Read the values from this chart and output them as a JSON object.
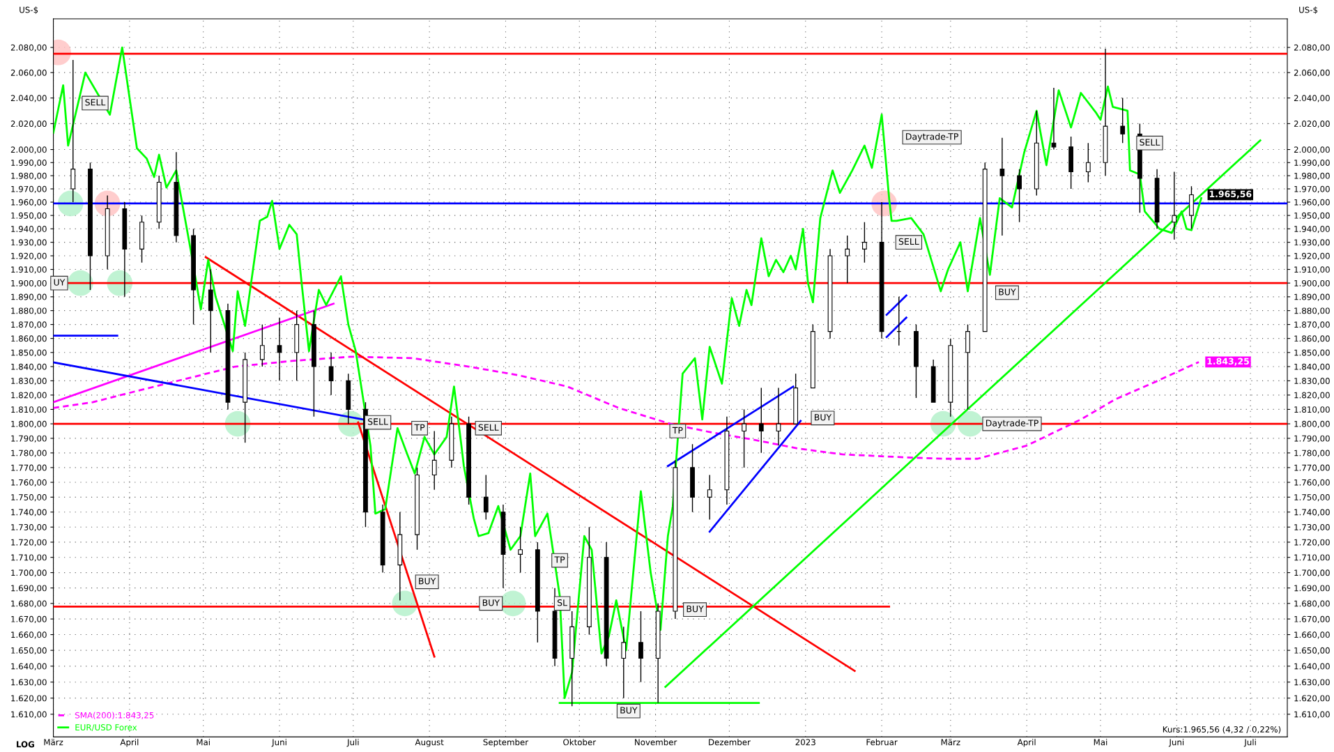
{
  "chart_data": {
    "type": "candlestick",
    "ylabel": "US-$",
    "y2label": "US-$",
    "log": true,
    "grid": true,
    "legend": "bottom left",
    "xlim": [
      "2022-03-01",
      "2023-07-16"
    ],
    "xticks": [
      {
        "value": "2022-03-01",
        "label": "März"
      },
      {
        "value": "2022-04-01",
        "label": "April"
      },
      {
        "value": "2022-05-01",
        "label": "Mai"
      },
      {
        "value": "2022-06-01",
        "label": "Juni"
      },
      {
        "value": "2022-07-01",
        "label": "Juli"
      },
      {
        "value": "2022-08-01",
        "label": "August"
      },
      {
        "value": "2022-09-01",
        "label": "September"
      },
      {
        "value": "2022-10-01",
        "label": "Oktober"
      },
      {
        "value": "2022-11-01",
        "label": "November"
      },
      {
        "value": "2022-12-01",
        "label": "Dezember"
      },
      {
        "value": "2023-01-01",
        "label": "2023"
      },
      {
        "value": "2023-02-01",
        "label": "Februar"
      },
      {
        "value": "2023-03-01",
        "label": "März"
      },
      {
        "value": "2023-04-01",
        "label": "April"
      },
      {
        "value": "2023-05-01",
        "label": "Mai"
      },
      {
        "value": "2023-06-01",
        "label": "Juni"
      },
      {
        "value": "2023-07-01",
        "label": "Juli"
      }
    ],
    "ylim": [
      1596,
      2103
    ],
    "yticks": [
      {
        "value": 1610,
        "label": "1.610,00"
      },
      {
        "value": 1620,
        "label": "1.620,00"
      },
      {
        "value": 1630,
        "label": "1.630,00"
      },
      {
        "value": 1640,
        "label": "1.640,00"
      },
      {
        "value": 1650,
        "label": "1.650,00"
      },
      {
        "value": 1660,
        "label": "1.660,00"
      },
      {
        "value": 1670,
        "label": "1.670,00"
      },
      {
        "value": 1680,
        "label": "1.680,00"
      },
      {
        "value": 1690,
        "label": "1.690,00"
      },
      {
        "value": 1700,
        "label": "1.700,00"
      },
      {
        "value": 1710,
        "label": "1.710,00"
      },
      {
        "value": 1720,
        "label": "1.720,00"
      },
      {
        "value": 1730,
        "label": "1.730,00"
      },
      {
        "value": 1740,
        "label": "1.740,00"
      },
      {
        "value": 1750,
        "label": "1.750,00"
      },
      {
        "value": 1760,
        "label": "1.760,00"
      },
      {
        "value": 1770,
        "label": "1.770,00"
      },
      {
        "value": 1780,
        "label": "1.780,00"
      },
      {
        "value": 1790,
        "label": "1.790,00"
      },
      {
        "value": 1800,
        "label": "1.800,00"
      },
      {
        "value": 1810,
        "label": "1.810,00"
      },
      {
        "value": 1820,
        "label": "1.820,00"
      },
      {
        "value": 1830,
        "label": "1.830,00"
      },
      {
        "value": 1840,
        "label": "1.840,00"
      },
      {
        "value": 1850,
        "label": "1.850,00"
      },
      {
        "value": 1860,
        "label": "1.860,00"
      },
      {
        "value": 1870,
        "label": "1.870,00"
      },
      {
        "value": 1880,
        "label": "1.880,00"
      },
      {
        "value": 1890,
        "label": "1.890,00"
      },
      {
        "value": 1900,
        "label": "1.900,00"
      },
      {
        "value": 1910,
        "label": "1.910,00"
      },
      {
        "value": 1920,
        "label": "1.920,00"
      },
      {
        "value": 1930,
        "label": "1.930,00"
      },
      {
        "value": 1940,
        "label": "1.940,00"
      },
      {
        "value": 1950,
        "label": "1.950,00"
      },
      {
        "value": 1960,
        "label": "1.960,00"
      },
      {
        "value": 1970,
        "label": "1.970,00"
      },
      {
        "value": 1980,
        "label": "1.980,00"
      },
      {
        "value": 1990,
        "label": "1.990,00"
      },
      {
        "value": 2000,
        "label": "2.000,00"
      },
      {
        "value": 2020,
        "label": "2.020,00"
      },
      {
        "value": 2040,
        "label": "2.040,00"
      },
      {
        "value": 2060,
        "label": "2.060,00"
      },
      {
        "value": 2080,
        "label": "2.080,00"
      }
    ],
    "ref_lines": [
      {
        "axis": "y",
        "value": 2075,
        "color": "#ff0000"
      },
      {
        "axis": "y",
        "value": 1900,
        "color": "#ff0000"
      },
      {
        "axis": "y",
        "value": 1800,
        "color": "#ff0000"
      },
      {
        "axis": "y",
        "value": 1959,
        "color": "#0000ff"
      }
    ],
    "series": [
      {
        "type": "scatter",
        "marker": "circle",
        "x": [
          "2022-03-03",
          "2022-03-23",
          "2023-02-02",
          "2022-03-08",
          "2022-03-12",
          "2022-03-28",
          "2022-05-15",
          "2022-06-30",
          "2022-07-22",
          "2022-09-04",
          "2023-02-26",
          "2023-03-09"
        ],
        "values": [
          2076,
          1959,
          1959,
          1959,
          1900,
          1900,
          1800,
          1800,
          1680,
          1680,
          1800,
          1800
        ],
        "colors": [
          "#ffc0c0",
          "#ffc0c0",
          "#ffc0c0",
          "#b0f0c8",
          "#b0f0c8",
          "#b0f0c8",
          "#b0f0c8",
          "#b0f0c8",
          "#b0f0c8",
          "#b0f0c8",
          "#b0f0c8",
          "#b0f0c8"
        ]
      },
      {
        "type": "line",
        "name": "SMA(200):1.843,25",
        "color": "#ff00ff",
        "line_style": "dashed",
        "x": [
          "2022-03-01",
          "2022-03-17",
          "2022-04-02",
          "2022-04-23",
          "2022-05-14",
          "2022-06-06",
          "2022-06-30",
          "2022-07-25",
          "2022-08-17",
          "2022-09-06",
          "2022-09-26",
          "2022-10-17",
          "2022-11-07",
          "2022-11-24",
          "2022-12-11",
          "2022-12-29",
          "2023-01-16",
          "2023-02-10",
          "2023-02-27",
          "2023-03-12",
          "2023-04-01",
          "2023-04-23",
          "2023-05-07",
          "2023-05-23",
          "2023-06-10"
        ],
        "values": [
          1811,
          1815,
          1822,
          1831,
          1840,
          1844,
          1847,
          1846,
          1840,
          1834,
          1826,
          1811,
          1800,
          1794,
          1789,
          1783,
          1779,
          1777,
          1776,
          1776,
          1785,
          1803,
          1817,
          1829,
          1843.25
        ],
        "value_labels": [
          null,
          null,
          null,
          null,
          null,
          null,
          null,
          null,
          null,
          null,
          null,
          null,
          null,
          null,
          null,
          null,
          null,
          null,
          null,
          null,
          null,
          null,
          null,
          null,
          "1.843,25"
        ]
      },
      {
        "type": "line",
        "color": "#ff0000",
        "x": [
          "2022-03-01",
          "2023-02-04"
        ],
        "values": [
          1678,
          1678
        ]
      },
      {
        "type": "line",
        "color": "#ff0000",
        "x": [
          "2022-05-02",
          "2023-01-21"
        ],
        "values": [
          1919,
          1637
        ]
      },
      {
        "type": "line",
        "color": "#ff0000",
        "x": [
          "2022-07-03",
          "2022-08-03"
        ],
        "values": [
          1801,
          1646
        ]
      },
      {
        "type": "line",
        "color": "#ff00ff",
        "x": [
          "2022-03-01",
          "2022-06-23"
        ],
        "values": [
          1815,
          1885
        ]
      },
      {
        "type": "line",
        "color": "#0000ff",
        "x": [
          "2022-03-01",
          "2022-07-05"
        ],
        "values": [
          1843,
          1803
        ]
      },
      {
        "type": "line",
        "color": "#0000ff",
        "x": [
          "2022-03-01",
          "2022-03-27"
        ],
        "values": [
          1862,
          1862
        ]
      },
      {
        "type": "line",
        "color": "#0000ff",
        "x": [
          "2022-11-06",
          "2022-12-27"
        ],
        "values": [
          1771,
          1826
        ]
      },
      {
        "type": "line",
        "color": "#0000ff",
        "x": [
          "2022-11-23",
          "2022-12-30"
        ],
        "values": [
          1727,
          1802
        ]
      },
      {
        "type": "line",
        "color": "#0000ff",
        "x": [
          "2023-02-03",
          "2023-02-11"
        ],
        "values": [
          1877,
          1891
        ]
      },
      {
        "type": "line",
        "color": "#0000ff",
        "x": [
          "2023-02-03",
          "2023-02-11"
        ],
        "values": [
          1861,
          1875
        ]
      },
      {
        "color": "#000000",
        "x": [
          "2022-03-09",
          "2022-03-16",
          "2022-03-23",
          "2022-03-30",
          "2022-04-06",
          "2022-04-13",
          "2022-04-20",
          "2022-04-27",
          "2022-05-04",
          "2022-05-11",
          "2022-05-18",
          "2022-05-25",
          "2022-06-01",
          "2022-06-08",
          "2022-06-15",
          "2022-06-22",
          "2022-06-29",
          "2022-07-06",
          "2022-07-13",
          "2022-07-20",
          "2022-07-27",
          "2022-08-03",
          "2022-08-10",
          "2022-08-17",
          "2022-08-24",
          "2022-08-31",
          "2022-09-07",
          "2022-09-14",
          "2022-09-21",
          "2022-09-28",
          "2022-10-05",
          "2022-10-12",
          "2022-10-19",
          "2022-10-26",
          "2022-11-02",
          "2022-11-09",
          "2022-11-16",
          "2022-11-23",
          "2022-11-30",
          "2022-12-07",
          "2022-12-14",
          "2022-12-21",
          "2022-12-28",
          "2023-01-04",
          "2023-01-11",
          "2023-01-18",
          "2023-01-25",
          "2023-02-01",
          "2023-02-08",
          "2023-02-15",
          "2023-02-22",
          "2023-03-01",
          "2023-03-08",
          "2023-03-15",
          "2023-03-22",
          "2023-03-29",
          "2023-04-05",
          "2023-04-12",
          "2023-04-19",
          "2023-04-26",
          "2023-05-03",
          "2023-05-10",
          "2023-05-17",
          "2023-05-24",
          "2023-05-31",
          "2023-06-07"
        ],
        "ohlc": [
          [
            1970,
            2070,
            1960,
            1985
          ],
          [
            1985,
            1990,
            1895,
            1920
          ],
          [
            1920,
            1965,
            1910,
            1955
          ],
          [
            1955,
            1960,
            1890,
            1925
          ],
          [
            1925,
            1950,
            1915,
            1945
          ],
          [
            1945,
            1980,
            1940,
            1975
          ],
          [
            1975,
            1998,
            1930,
            1935
          ],
          [
            1935,
            1940,
            1870,
            1895
          ],
          [
            1895,
            1910,
            1850,
            1880
          ],
          [
            1880,
            1885,
            1810,
            1815
          ],
          [
            1815,
            1850,
            1787,
            1845
          ],
          [
            1845,
            1870,
            1840,
            1855
          ],
          [
            1855,
            1875,
            1830,
            1850
          ],
          [
            1850,
            1880,
            1830,
            1870
          ],
          [
            1870,
            1880,
            1805,
            1840
          ],
          [
            1840,
            1850,
            1820,
            1830
          ],
          [
            1830,
            1835,
            1800,
            1810
          ],
          [
            1810,
            1815,
            1730,
            1740
          ],
          [
            1740,
            1745,
            1700,
            1705
          ],
          [
            1705,
            1740,
            1682,
            1725
          ],
          [
            1725,
            1770,
            1715,
            1765
          ],
          [
            1765,
            1795,
            1755,
            1775
          ],
          [
            1775,
            1805,
            1770,
            1800
          ],
          [
            1800,
            1805,
            1745,
            1750
          ],
          [
            1750,
            1765,
            1735,
            1740
          ],
          [
            1740,
            1745,
            1690,
            1712
          ],
          [
            1712,
            1730,
            1700,
            1715
          ],
          [
            1715,
            1720,
            1655,
            1675
          ],
          [
            1675,
            1690,
            1640,
            1645
          ],
          [
            1645,
            1675,
            1615,
            1665
          ],
          [
            1665,
            1730,
            1660,
            1710
          ],
          [
            1710,
            1720,
            1640,
            1645
          ],
          [
            1645,
            1665,
            1620,
            1655
          ],
          [
            1655,
            1675,
            1630,
            1645
          ],
          [
            1645,
            1680,
            1617,
            1675
          ],
          [
            1675,
            1775,
            1670,
            1770
          ],
          [
            1770,
            1786,
            1740,
            1750
          ],
          [
            1750,
            1765,
            1735,
            1755
          ],
          [
            1755,
            1805,
            1745,
            1795
          ],
          [
            1795,
            1810,
            1770,
            1800
          ],
          [
            1800,
            1825,
            1780,
            1795
          ],
          [
            1795,
            1825,
            1785,
            1800
          ],
          [
            1800,
            1835,
            1800,
            1825
          ],
          [
            1825,
            1870,
            1825,
            1865
          ],
          [
            1865,
            1925,
            1860,
            1920
          ],
          [
            1920,
            1935,
            1900,
            1925
          ],
          [
            1925,
            1945,
            1915,
            1930
          ],
          [
            1930,
            1960,
            1860,
            1865
          ],
          [
            1865,
            1890,
            1855,
            1865
          ],
          [
            1865,
            1870,
            1818,
            1840
          ],
          [
            1840,
            1845,
            1815,
            1815
          ],
          [
            1815,
            1860,
            1805,
            1855
          ],
          [
            1850,
            1870,
            1810,
            1865
          ],
          [
            1865,
            1990,
            1865,
            1985
          ],
          [
            1985,
            2009,
            1935,
            1980
          ],
          [
            1980,
            1985,
            1945,
            1970
          ],
          [
            1970,
            2030,
            1965,
            2005
          ],
          [
            2005,
            2048,
            2000,
            2002
          ],
          [
            2002,
            2010,
            1970,
            1983
          ],
          [
            1983,
            2005,
            1975,
            1990
          ],
          [
            1990,
            2079,
            1980,
            2018
          ],
          [
            2018,
            2040,
            2005,
            2012
          ],
          [
            2012,
            2020,
            1952,
            1978
          ],
          [
            1978,
            1985,
            1940,
            1945
          ],
          [
            1945,
            1983,
            1932,
            1950
          ],
          [
            1950,
            1972,
            1940,
            1965.56
          ]
        ],
        "value_labels": [
          null,
          null,
          null,
          null,
          null,
          null,
          null,
          null,
          null,
          null,
          null,
          null,
          null,
          null,
          null,
          null,
          null,
          null,
          null,
          null,
          null,
          null,
          null,
          null,
          null,
          null,
          null,
          null,
          null,
          null,
          null,
          null,
          null,
          null,
          null,
          null,
          null,
          null,
          null,
          null,
          null,
          null,
          null,
          null,
          null,
          null,
          null,
          null,
          null,
          null,
          null,
          null,
          null,
          null,
          null,
          null,
          null,
          null,
          null,
          null,
          null,
          null,
          null,
          null,
          null,
          "1.965,56"
        ]
      },
      {
        "type": "line",
        "name": "EUR/USD Forex",
        "color": "#00ff00",
        "x": [
          "2022-03-01",
          "2022-03-05",
          "2022-03-07",
          "2022-03-14",
          "2022-03-24",
          "2022-03-29",
          "2022-04-04",
          "2022-04-08",
          "2022-04-11",
          "2022-04-13",
          "2022-04-16",
          "2022-04-20",
          "2022-04-26",
          "2022-04-30",
          "2022-05-03",
          "2022-05-06",
          "2022-05-13",
          "2022-05-15",
          "2022-05-18",
          "2022-05-24",
          "2022-05-27",
          "2022-05-29",
          "2022-06-01",
          "2022-06-05",
          "2022-06-08",
          "2022-06-10",
          "2022-06-13",
          "2022-06-17",
          "2022-06-20",
          "2022-06-26",
          "2022-06-29",
          "2022-07-02",
          "2022-07-08",
          "2022-07-10",
          "2022-07-14",
          "2022-07-19",
          "2022-07-23",
          "2022-07-26",
          "2022-07-30",
          "2022-08-03",
          "2022-08-08",
          "2022-08-11",
          "2022-08-14",
          "2022-08-15",
          "2022-08-19",
          "2022-08-21",
          "2022-08-25",
          "2022-08-29",
          "2022-09-03",
          "2022-09-07",
          "2022-09-11",
          "2022-09-13",
          "2022-09-18",
          "2022-09-23",
          "2022-09-25",
          "2022-09-28",
          "2022-10-03",
          "2022-10-06",
          "2022-10-10",
          "2022-10-13",
          "2022-10-16",
          "2022-10-20",
          "2022-10-26",
          "2022-10-30",
          "2022-11-03",
          "2022-11-06",
          "2022-11-08",
          "2022-11-12",
          "2022-11-17",
          "2022-11-20",
          "2022-11-23",
          "2022-11-28",
          "2022-12-02",
          "2022-12-05",
          "2022-12-08",
          "2022-12-10",
          "2022-12-14",
          "2022-12-17",
          "2022-12-20",
          "2022-12-23",
          "2022-12-26",
          "2022-12-28",
          "2022-12-31",
          "2023-01-02",
          "2023-01-04",
          "2023-01-07",
          "2023-01-12",
          "2023-01-15",
          "2023-01-20",
          "2023-01-25",
          "2023-01-28",
          "2023-02-01",
          "2023-02-04",
          "2023-02-05",
          "2023-02-07",
          "2023-02-13",
          "2023-02-18",
          "2023-02-25",
          "2023-02-28",
          "2023-03-05",
          "2023-03-08",
          "2023-03-13",
          "2023-03-17",
          "2023-03-21",
          "2023-03-26",
          "2023-03-31",
          "2023-04-05",
          "2023-04-09",
          "2023-04-14",
          "2023-04-19",
          "2023-04-23",
          "2023-04-29",
          "2023-05-01",
          "2023-05-04",
          "2023-05-06",
          "2023-05-12",
          "2023-05-13",
          "2023-05-17",
          "2023-05-19",
          "2023-05-25",
          "2023-05-30",
          "2023-06-03",
          "2023-06-05",
          "2023-06-07",
          "2023-06-11"
        ],
        "values": [
          2013,
          2050,
          2003,
          2060,
          2027,
          2080,
          2001,
          1993,
          1979,
          1996,
          1971,
          1984,
          1923,
          1881,
          1917,
          1890,
          1851,
          1894,
          1869,
          1946,
          1949,
          1961,
          1925,
          1943,
          1936,
          1900,
          1851,
          1895,
          1884,
          1905,
          1870,
          1851,
          1785,
          1739,
          1742,
          1797,
          1779,
          1766,
          1791,
          1779,
          1791,
          1826,
          1785,
          1771,
          1736,
          1724,
          1726,
          1744,
          1715,
          1724,
          1766,
          1724,
          1739,
          1685,
          1620,
          1636,
          1724,
          1715,
          1648,
          1659,
          1682,
          1650,
          1754,
          1700,
          1663,
          1724,
          1744,
          1835,
          1846,
          1803,
          1854,
          1828,
          1889,
          1869,
          1895,
          1884,
          1933,
          1905,
          1917,
          1908,
          1920,
          1910,
          1940,
          1900,
          1886,
          1948,
          1984,
          1967,
          1984,
          2003,
          1986,
          2027,
          1963,
          1946,
          1946,
          1948,
          1936,
          1894,
          1910,
          1930,
          1894,
          1948,
          1906,
          1963,
          1956,
          1998,
          2030,
          1988,
          2046,
          2017,
          2044,
          2029,
          2023,
          2049,
          2033,
          2030,
          1984,
          1981,
          1953,
          1940,
          1937,
          1953,
          1940,
          1939,
          1963
        ]
      },
      {
        "type": "line",
        "color": "#00ff00",
        "x": [
          "2022-09-23",
          "2022-12-13"
        ],
        "values": [
          1617,
          1617
        ]
      },
      {
        "type": "line",
        "color": "#00ff00",
        "x": [
          "2022-11-05",
          "2023-07-05"
        ],
        "values": [
          1627,
          2007
        ]
      }
    ],
    "annotations": [
      {
        "text": "SELL",
        "x": "2022-03-18",
        "y": 2036
      },
      {
        "text": "UY",
        "x": "2022-03-01",
        "y": 1900
      },
      {
        "text": "SELL",
        "x": "2022-07-11",
        "y": 1801
      },
      {
        "text": "TP",
        "x": "2022-07-28",
        "y": 1797
      },
      {
        "text": "SELL",
        "x": "2022-08-25",
        "y": 1797
      },
      {
        "text": "TP",
        "x": "2022-11-10",
        "y": 1795
      },
      {
        "text": "TP",
        "x": "2022-09-23",
        "y": 1708
      },
      {
        "text": "SL",
        "x": "2022-09-24",
        "y": 1680
      },
      {
        "text": "BUY",
        "x": "2022-07-31",
        "y": 1694
      },
      {
        "text": "BUY",
        "x": "2022-08-26",
        "y": 1680
      },
      {
        "text": "BUY",
        "x": "2022-11-17",
        "y": 1676
      },
      {
        "text": "BUY",
        "x": "2022-10-21",
        "y": 1612
      },
      {
        "text": "BUY",
        "x": "2023-01-08",
        "y": 1804
      },
      {
        "text": "Daytrade-TP",
        "x": "2023-03-26",
        "y": 1800
      },
      {
        "text": "SELL",
        "x": "2023-02-12",
        "y": 1930
      },
      {
        "text": "BUY",
        "x": "2023-03-24",
        "y": 1893
      },
      {
        "text": "SELL",
        "x": "2023-05-21",
        "y": 2005
      },
      "Daytrade-TP",
      "LOG",
      "Kurs:1.965,56 (4,32 / 0,22%)"
    ]
  }
}
